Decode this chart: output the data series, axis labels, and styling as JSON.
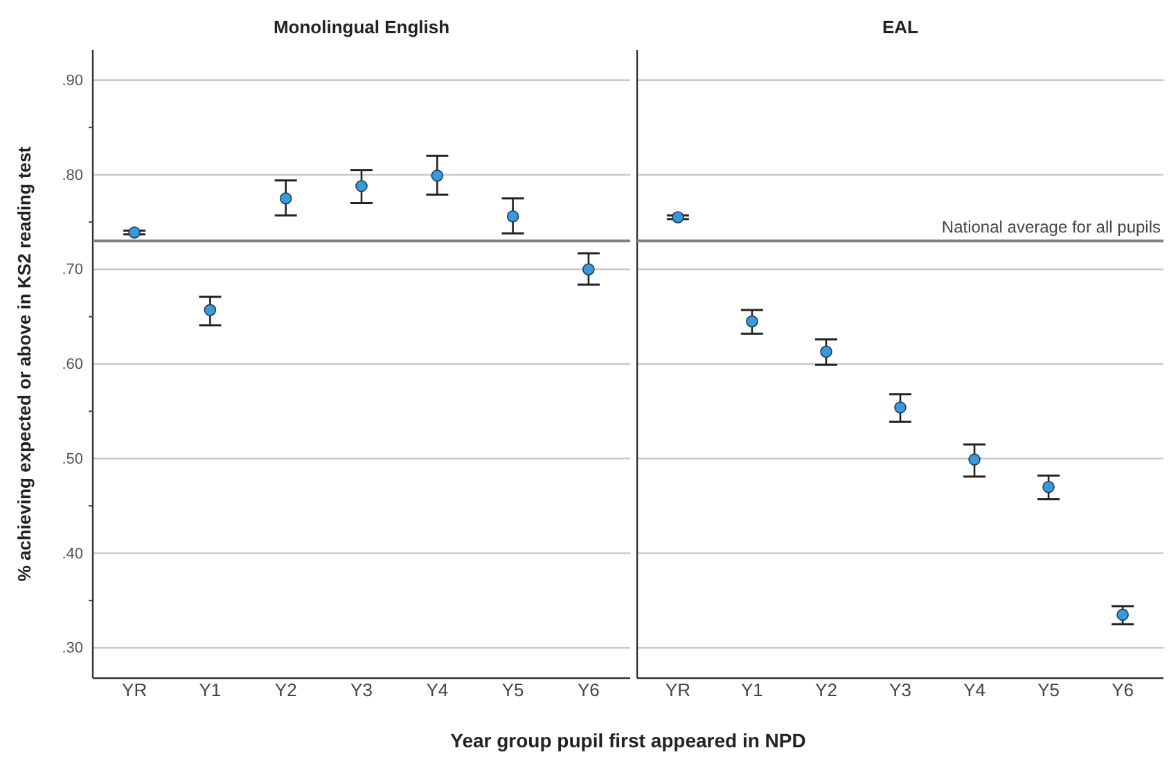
{
  "chart_data": [
    {
      "type": "scatter",
      "title": "Monolingual English",
      "xlabel": "Year group pupil first appeared in NPD",
      "ylabel": "% achieving expected or above in KS2 reading test",
      "categories": [
        "YR",
        "Y1",
        "Y2",
        "Y3",
        "Y4",
        "Y5",
        "Y6"
      ],
      "series": [
        {
          "color": "#3a9ad9",
          "values": [
            0.739,
            0.657,
            0.775,
            0.788,
            0.799,
            0.756,
            0.7
          ],
          "errors": [
            [
              0.737,
              0.741
            ],
            [
              0.641,
              0.671
            ],
            [
              0.757,
              0.794
            ],
            [
              0.77,
              0.805
            ],
            [
              0.779,
              0.82
            ],
            [
              0.738,
              0.775
            ],
            [
              0.684,
              0.717
            ]
          ]
        }
      ],
      "ylim": [
        0.268,
        0.932
      ],
      "yticks": [
        {
          "value": 0.3,
          "label": ".30"
        },
        {
          "value": 0.35,
          "label": null
        },
        {
          "value": 0.4,
          "label": ".40"
        },
        {
          "value": 0.45,
          "label": null
        },
        {
          "value": 0.5,
          "label": ".50"
        },
        {
          "value": 0.55,
          "label": null
        },
        {
          "value": 0.6,
          "label": ".60"
        },
        {
          "value": 0.65,
          "label": null
        },
        {
          "value": 0.7,
          "label": ".70"
        },
        {
          "value": 0.75,
          "label": null
        },
        {
          "value": 0.8,
          "label": ".80"
        },
        {
          "value": 0.85,
          "label": null
        },
        {
          "value": 0.9,
          "label": ".90"
        }
      ],
      "grid": "y",
      "marker": "circle",
      "ref_lines": [
        {
          "axis": "y",
          "value": 0.73,
          "color": "#808080"
        }
      ]
    },
    {
      "type": "scatter",
      "title": "EAL",
      "categories": [
        "YR",
        "Y1",
        "Y2",
        "Y3",
        "Y4",
        "Y5",
        "Y6"
      ],
      "series": [
        {
          "color": "#3a9ad9",
          "values": [
            0.755,
            0.645,
            0.613,
            0.554,
            0.499,
            0.47,
            0.335
          ],
          "errors": [
            [
              0.753,
              0.757
            ],
            [
              0.632,
              0.657
            ],
            [
              0.599,
              0.626
            ],
            [
              0.539,
              0.568
            ],
            [
              0.481,
              0.515
            ],
            [
              0.457,
              0.482
            ],
            [
              0.325,
              0.344
            ]
          ]
        }
      ],
      "ylim": [
        0.268,
        0.932
      ],
      "yticks": [
        0.3,
        0.4,
        0.5,
        0.6,
        0.7,
        0.8,
        0.9
      ],
      "grid": "y",
      "marker": "circle",
      "tick_labels": "x",
      "ref_lines": [
        {
          "axis": "y",
          "value": 0.73,
          "label": "National average for all pupils",
          "color": "#808080"
        }
      ]
    }
  ]
}
